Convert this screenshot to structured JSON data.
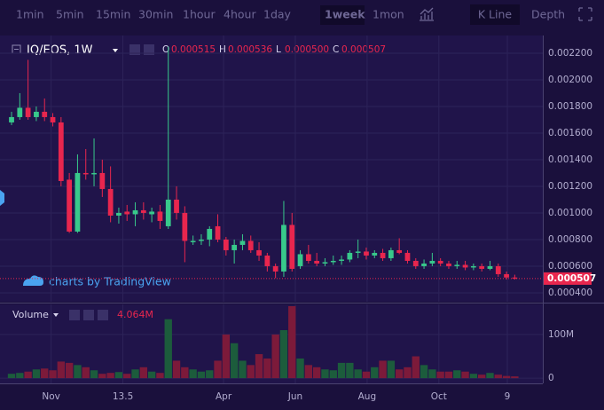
{
  "toolbar": {
    "intervals": [
      "1min",
      "5min",
      "15min",
      "30min",
      "1hour",
      "4hour",
      "1day",
      "1week",
      "1mon"
    ],
    "active": 7,
    "views": [
      "K Line",
      "Depth"
    ]
  },
  "legend": {
    "symbol": "IQ/EOS, 1W",
    "ohlc": [
      {
        "key": "O",
        "value": "0.000515"
      },
      {
        "key": "H",
        "value": "0.000536"
      },
      {
        "key": "L",
        "value": "0.000500"
      },
      {
        "key": "C",
        "value": "0.000507"
      }
    ]
  },
  "brand": "charts by TradingView",
  "chart_data": {
    "type": "candlestick",
    "categories": [
      null,
      null,
      null,
      null,
      null,
      null,
      null,
      null,
      null,
      null,
      null,
      null,
      null,
      null,
      null,
      null,
      null,
      null,
      null,
      null,
      null,
      null,
      null,
      null,
      null,
      null,
      null,
      null,
      null,
      null,
      null,
      null,
      null,
      null,
      null,
      null,
      null,
      null,
      null,
      null,
      null,
      null,
      null,
      null,
      null,
      null,
      null,
      null,
      null,
      null,
      null,
      null,
      null,
      null,
      null,
      null,
      null,
      null,
      null,
      null,
      null,
      null
    ],
    "open": [
      0.00168,
      0.00172,
      0.00179,
      0.00172,
      0.00176,
      0.00172,
      0.00168,
      0.00125,
      0.00086,
      0.0013,
      0.00129,
      0.0013,
      0.00118,
      0.00098,
      0.00101,
      0.00099,
      0.00102,
      0.00099,
      0.00101,
      0.0009,
      0.0011,
      0.001,
      0.00078,
      0.00079,
      0.0008,
      0.0009,
      0.0008,
      0.00072,
      0.00076,
      0.00079,
      0.00072,
      0.00068,
      0.0006,
      0.00056,
      0.00091,
      0.0006,
      0.00069,
      0.00064,
      0.00062,
      0.00063,
      0.00064,
      0.00065,
      0.0007,
      0.00071,
      0.00068,
      0.0007,
      0.00066,
      0.00072,
      0.0007,
      0.00064,
      0.0006,
      0.00062,
      0.00064,
      0.00062,
      0.0006,
      0.00061,
      0.00059,
      0.0006,
      0.00058,
      0.0006,
      0.00054,
      0.000515
    ],
    "high": [
      0.00176,
      0.0019,
      0.00215,
      0.0018,
      0.00186,
      0.00175,
      0.00172,
      0.0013,
      0.00144,
      0.00148,
      0.00156,
      0.0014,
      0.00135,
      0.00104,
      0.00106,
      0.00108,
      0.00108,
      0.00104,
      0.00106,
      0.00225,
      0.0012,
      0.00105,
      0.00083,
      0.00084,
      0.0009,
      0.00099,
      0.00082,
      0.0008,
      0.00084,
      0.00083,
      0.00078,
      0.0007,
      0.00062,
      0.00109,
      0.001,
      0.00072,
      0.00076,
      0.0007,
      0.00066,
      0.00068,
      0.00068,
      0.00072,
      0.0008,
      0.00074,
      0.00072,
      0.00073,
      0.00074,
      0.00081,
      0.00072,
      0.00066,
      0.00065,
      0.0007,
      0.00066,
      0.00064,
      0.00064,
      0.00064,
      0.00062,
      0.00062,
      0.00064,
      0.00062,
      0.00056,
      0.000536
    ],
    "low": [
      0.00166,
      0.0017,
      0.0017,
      0.00169,
      0.00169,
      0.00165,
      0.0012,
      0.00085,
      0.00085,
      0.00125,
      0.0012,
      0.00112,
      0.00093,
      0.00092,
      0.00094,
      0.0009,
      0.00095,
      0.00093,
      0.00088,
      0.00088,
      0.00095,
      0.00063,
      0.00076,
      0.00076,
      0.00075,
      0.00078,
      0.00068,
      0.00062,
      0.00072,
      0.0007,
      0.00064,
      0.00056,
      0.00051,
      0.00052,
      0.00056,
      0.00058,
      0.00062,
      0.0006,
      0.0006,
      0.00061,
      0.00061,
      0.00063,
      0.00066,
      0.00065,
      0.00066,
      0.00064,
      0.00064,
      0.00069,
      0.00062,
      0.00058,
      0.00058,
      0.0006,
      0.0006,
      0.00058,
      0.00058,
      0.00057,
      0.00057,
      0.00056,
      0.00057,
      0.00052,
      0.0005,
      0.0005
    ],
    "close": [
      0.00172,
      0.00179,
      0.00172,
      0.00176,
      0.00172,
      0.00168,
      0.00124,
      0.00086,
      0.0013,
      0.00129,
      0.0013,
      0.00118,
      0.00098,
      0.001,
      0.00099,
      0.00102,
      0.001,
      0.00101,
      0.00094,
      0.0011,
      0.001,
      0.00079,
      0.00079,
      0.0008,
      0.00088,
      0.0008,
      0.00072,
      0.00076,
      0.00079,
      0.00072,
      0.00068,
      0.0006,
      0.00056,
      0.00091,
      0.00058,
      0.00069,
      0.00064,
      0.00062,
      0.00063,
      0.00064,
      0.00065,
      0.0007,
      0.00071,
      0.00068,
      0.0007,
      0.00066,
      0.00072,
      0.0007,
      0.00064,
      0.0006,
      0.00062,
      0.00064,
      0.00062,
      0.0006,
      0.00061,
      0.00059,
      0.0006,
      0.00058,
      0.0006,
      0.00054,
      0.000515,
      0.000507
    ],
    "up_color": "#38c98b",
    "down_color": "#e8264e",
    "xlim": [
      -1.4,
      64.4
    ],
    "xticks": [
      {
        "value": 4.8,
        "label": "Nov"
      },
      13.5,
      {
        "value": 25.7,
        "label": "Apr"
      },
      {
        "value": 34.4,
        "label": "Jun"
      },
      {
        "value": 43.1,
        "label": "Aug"
      },
      {
        "value": 51.8,
        "label": "Oct"
      },
      {
        "value": 60.1,
        "label": "9"
      }
    ],
    "ylim": [
      0.000333,
      0.002333
    ],
    "yticks": [
      {
        "value": 0.0004,
        "label": "0.000400"
      },
      {
        "value": 0.0006,
        "label": "0.000600"
      },
      {
        "value": 0.0008,
        "label": "0.000800"
      },
      {
        "value": 0.001,
        "label": "0.001000"
      },
      {
        "value": 0.0012,
        "label": "0.001200"
      },
      {
        "value": 0.0014,
        "label": "0.001400"
      },
      {
        "value": 0.0016,
        "label": "0.001600"
      },
      {
        "value": 0.0018,
        "label": "0.001800"
      },
      {
        "value": 0.002,
        "label": "0.002000"
      },
      {
        "value": 0.0022,
        "label": "0.002200"
      }
    ],
    "last_price": 0.000507,
    "grid": true,
    "volume": {
      "name": "Volume",
      "last_label": "4.064M",
      "up_color": "#1c5c3c",
      "down_color": "#7c1a3a",
      "values": [
        10,
        12,
        15,
        20,
        22,
        18,
        38,
        35,
        30,
        25,
        18,
        10,
        12,
        14,
        10,
        20,
        25,
        15,
        12,
        135,
        40,
        25,
        20,
        15,
        18,
        40,
        100,
        80,
        40,
        30,
        55,
        45,
        100,
        110,
        165,
        45,
        30,
        25,
        20,
        18,
        35,
        35,
        20,
        15,
        25,
        40,
        40,
        20,
        25,
        50,
        30,
        20,
        15,
        15,
        18,
        15,
        10,
        8,
        12,
        8,
        5,
        4.064
      ],
      "ylim": [
        -12,
        169
      ],
      "yticks": [
        0,
        {
          "value": 100,
          "label": "100M"
        }
      ]
    }
  }
}
